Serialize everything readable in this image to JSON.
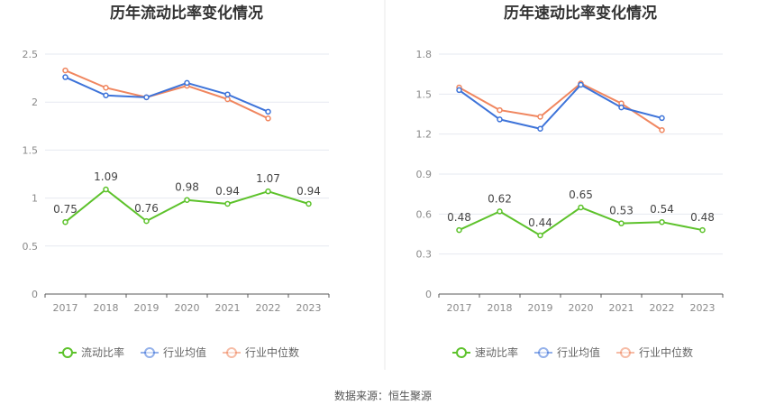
{
  "source": "数据来源：恒生聚源",
  "colors": {
    "company": "#5dc22b",
    "industry_avg": "#3d73d9",
    "industry_median": "#f0865f",
    "grid": "#e6e9f0",
    "axis": "#5a5a5a",
    "divider": "#e8e8e8"
  },
  "chart_data": [
    {
      "type": "line",
      "title": "历年流动比率变化情况",
      "categories": [
        "2017",
        "2018",
        "2019",
        "2020",
        "2021",
        "2022",
        "2023"
      ],
      "ylim": [
        0,
        2.5
      ],
      "yticks": [
        0,
        0.5,
        1,
        1.5,
        2,
        2.5
      ],
      "ytick_labels": [
        "0",
        "0.5",
        "1",
        "1.5",
        "2",
        "2.5"
      ],
      "grid": true,
      "legend_position": "bottom",
      "series": [
        {
          "name": "流动比率",
          "key": "company",
          "values": [
            0.75,
            1.09,
            0.76,
            0.98,
            0.94,
            1.07,
            0.94
          ],
          "labels": [
            "0.75",
            "1.09",
            "0.76",
            "0.98",
            "0.94",
            "1.07",
            "0.94"
          ]
        },
        {
          "name": "行业均值",
          "key": "industry_avg",
          "values": [
            2.26,
            2.07,
            2.05,
            2.2,
            2.08,
            1.9,
            null
          ]
        },
        {
          "name": "行业中位数",
          "key": "industry_median",
          "values": [
            2.33,
            2.15,
            2.05,
            2.17,
            2.03,
            1.83,
            null
          ]
        }
      ]
    },
    {
      "type": "line",
      "title": "历年速动比率变化情况",
      "categories": [
        "2017",
        "2018",
        "2019",
        "2020",
        "2021",
        "2022",
        "2023"
      ],
      "ylim": [
        0,
        1.8
      ],
      "yticks": [
        0,
        0.3,
        0.6,
        0.9,
        1.2,
        1.5,
        1.8
      ],
      "ytick_labels": [
        "0",
        "0.3",
        "0.6",
        "0.9",
        "1.2",
        "1.5",
        "1.8"
      ],
      "grid": true,
      "legend_position": "bottom",
      "series": [
        {
          "name": "速动比率",
          "key": "company",
          "values": [
            0.48,
            0.62,
            0.44,
            0.65,
            0.53,
            0.54,
            0.48
          ],
          "labels": [
            "0.48",
            "0.62",
            "0.44",
            "0.65",
            "0.53",
            "0.54",
            "0.48"
          ]
        },
        {
          "name": "行业均值",
          "key": "industry_avg",
          "values": [
            1.53,
            1.31,
            1.24,
            1.57,
            1.4,
            1.32,
            null
          ]
        },
        {
          "name": "行业中位数",
          "key": "industry_median",
          "values": [
            1.55,
            1.38,
            1.33,
            1.58,
            1.43,
            1.23,
            null
          ]
        }
      ]
    }
  ]
}
